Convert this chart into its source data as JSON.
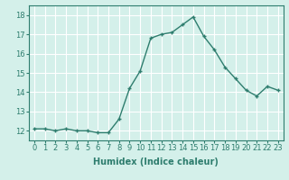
{
  "x": [
    0,
    1,
    2,
    3,
    4,
    5,
    6,
    7,
    8,
    9,
    10,
    11,
    12,
    13,
    14,
    15,
    16,
    17,
    18,
    19,
    20,
    21,
    22,
    23
  ],
  "y": [
    12.1,
    12.1,
    12.0,
    12.1,
    12.0,
    12.0,
    11.9,
    11.9,
    12.6,
    14.2,
    15.1,
    16.8,
    17.0,
    17.1,
    17.5,
    17.9,
    16.9,
    16.2,
    15.3,
    14.7,
    14.1,
    13.8,
    14.3,
    14.1
  ],
  "line_color": "#2e7d6e",
  "marker": "+",
  "marker_size": 3,
  "marker_linewidth": 1.0,
  "bg_color": "#d4f0ea",
  "grid_color": "#ffffff",
  "grid_minor_color": "#e8f8f5",
  "xlabel": "Humidex (Indice chaleur)",
  "xlabel_fontsize": 7,
  "ylim": [
    11.5,
    18.5
  ],
  "xlim": [
    -0.5,
    23.5
  ],
  "yticks": [
    12,
    13,
    14,
    15,
    16,
    17,
    18
  ],
  "xticks": [
    0,
    1,
    2,
    3,
    4,
    5,
    6,
    7,
    8,
    9,
    10,
    11,
    12,
    13,
    14,
    15,
    16,
    17,
    18,
    19,
    20,
    21,
    22,
    23
  ],
  "tick_fontsize": 6,
  "line_width": 1.0
}
